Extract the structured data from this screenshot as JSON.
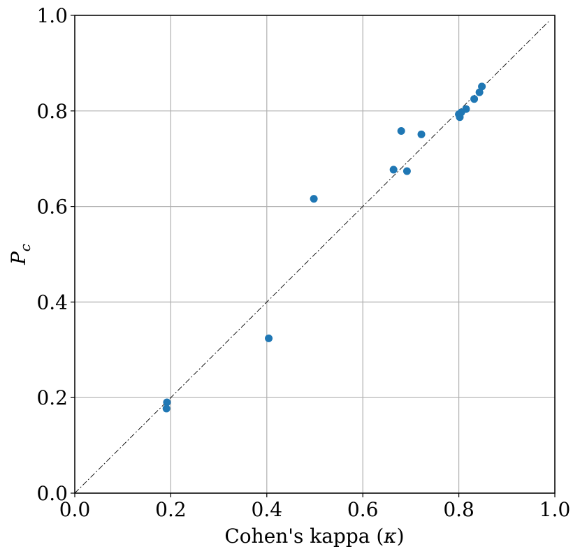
{
  "chart_data": {
    "type": "scatter",
    "xlabel": "Cohen's kappa (",
    "xlabel_symbol": "κ",
    "xlabel_close": ")",
    "ylabel": "P",
    "ylabel_sub": "c",
    "xlim": [
      0.0,
      1.0
    ],
    "ylim": [
      0.0,
      1.0
    ],
    "xticks": [
      "0.0",
      "0.2",
      "0.4",
      "0.6",
      "0.8",
      "1.0"
    ],
    "yticks": [
      "0.0",
      "0.2",
      "0.4",
      "0.6",
      "0.8",
      "1.0"
    ],
    "grid": true,
    "reference_line": "y = x",
    "marker_color": "#1f77b4",
    "points": [
      {
        "x": 0.192,
        "y": 0.19
      },
      {
        "x": 0.191,
        "y": 0.177
      },
      {
        "x": 0.404,
        "y": 0.324
      },
      {
        "x": 0.498,
        "y": 0.616
      },
      {
        "x": 0.664,
        "y": 0.677
      },
      {
        "x": 0.68,
        "y": 0.758
      },
      {
        "x": 0.692,
        "y": 0.674
      },
      {
        "x": 0.722,
        "y": 0.751
      },
      {
        "x": 0.8,
        "y": 0.793
      },
      {
        "x": 0.802,
        "y": 0.787
      },
      {
        "x": 0.805,
        "y": 0.797
      },
      {
        "x": 0.815,
        "y": 0.804
      },
      {
        "x": 0.832,
        "y": 0.825
      },
      {
        "x": 0.843,
        "y": 0.839
      },
      {
        "x": 0.848,
        "y": 0.851
      }
    ]
  }
}
